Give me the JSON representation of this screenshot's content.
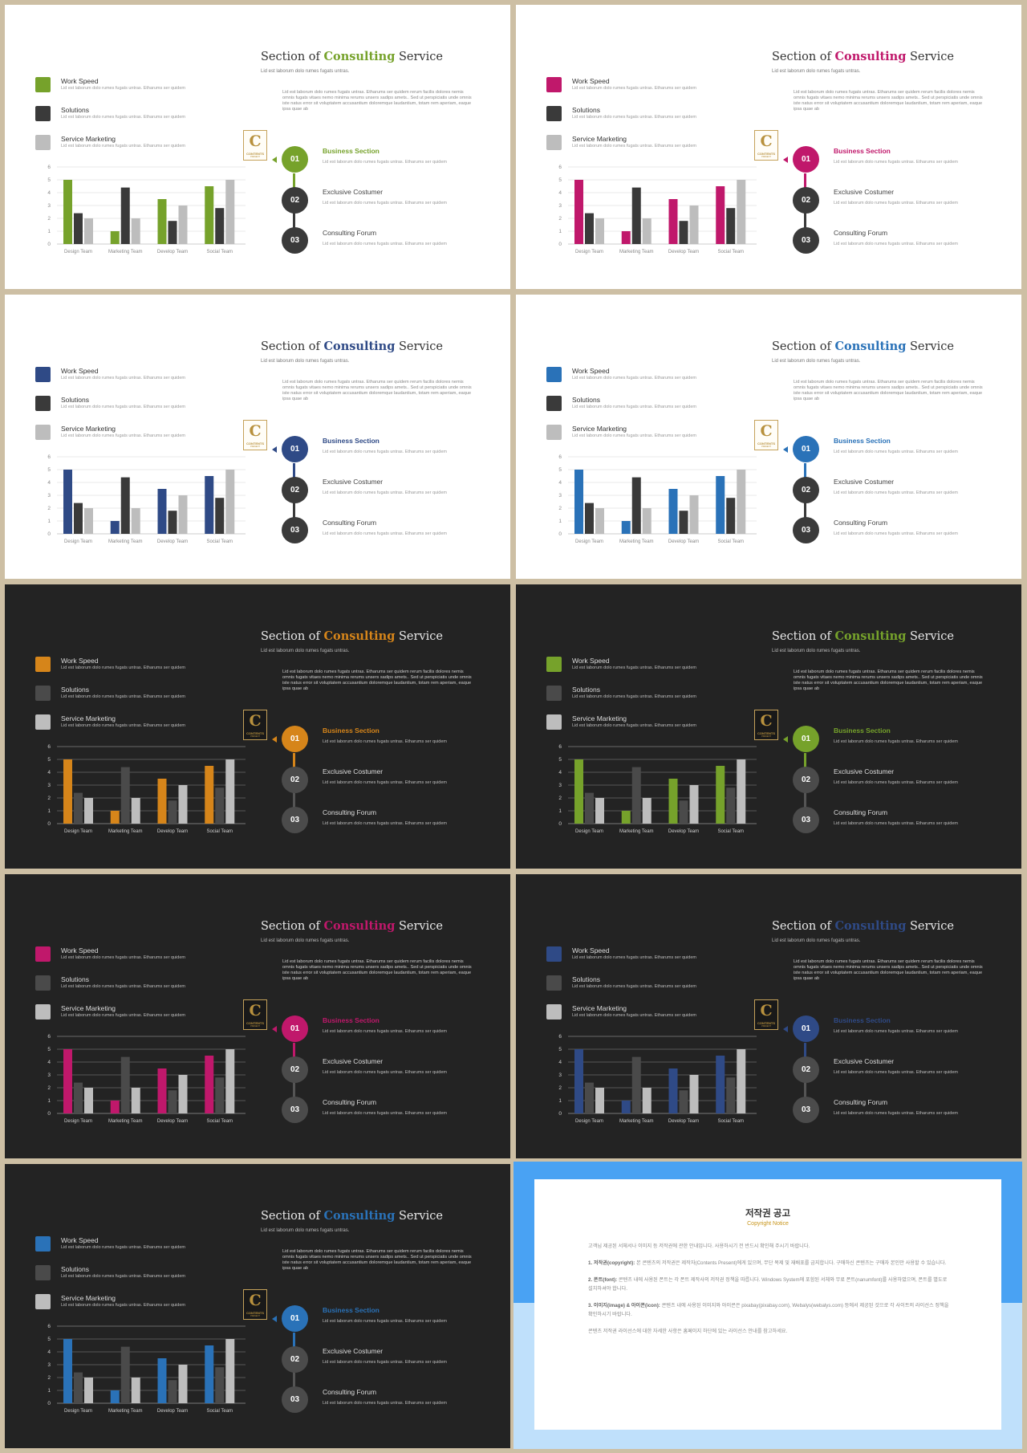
{
  "common": {
    "title_prefix": "Section of ",
    "title_accent": "Consulting",
    "title_suffix": " Service",
    "subtitle": "Lid est laborum dolo rumes fugats untras.",
    "paragraph": "Lid est laborum dolo rumes fugats untras. Etharums ser quidem rerum facilis dolores nemis omnis fugats vitaes nemo minima rerums unsers sadips amets.. Sed ut perspiciatis unde omnis iste natus error sit voluptatem accusantium doloremque laudantium, totam rem aperiam, eaque ipsa quae ab",
    "legend": [
      {
        "label": "Work Speed",
        "desc": "Lid est laborum dolo rumes fugats untras. Etharums ser quidem"
      },
      {
        "label": "Solutions",
        "desc": "Lid est laborum dolo rumes fugats untras. Etharums ser quidem"
      },
      {
        "label": "Service Marketing",
        "desc": "Lid est laborum dolo rumes fugats untras. Etharums ser quidem"
      }
    ],
    "logo": {
      "letter": "C",
      "line1": "CONTENTS",
      "line2": "PRESENT"
    },
    "steps": [
      {
        "num": "01",
        "title": "Business  Section",
        "desc": "Lid est laborum dolo rumes fugats untras. Etharums ser quidem"
      },
      {
        "num": "02",
        "title": "Exclusive Costumer",
        "desc": "Lid est laborum dolo rumes fugats untras. Etharums ser quidem"
      },
      {
        "num": "03",
        "title": "Consulting  Forum",
        "desc": "Lid est laborum dolo rumes fugats untras. Etharums ser quidem"
      }
    ]
  },
  "chart_data": {
    "type": "bar",
    "categories": [
      "Design Team",
      "Marketing Team",
      "Develop Team",
      "Social Team"
    ],
    "series": [
      {
        "name": "Work Speed",
        "values": [
          5,
          1,
          3.5,
          4.5
        ]
      },
      {
        "name": "Solutions",
        "values": [
          2.4,
          4.4,
          1.8,
          2.8
        ]
      },
      {
        "name": "Service Marketing",
        "values": [
          2,
          2,
          3,
          5
        ]
      }
    ],
    "ylim": [
      0,
      6
    ],
    "yticks": [
      0,
      1,
      2,
      3,
      4,
      5,
      6
    ],
    "grid": true
  },
  "slides": [
    {
      "theme": "light",
      "accent": "#76a22b"
    },
    {
      "theme": "light",
      "accent": "#c0186b"
    },
    {
      "theme": "light",
      "accent": "#2f4a86"
    },
    {
      "theme": "light",
      "accent": "#2a72b8"
    },
    {
      "theme": "dark",
      "accent": "#d6851a"
    },
    {
      "theme": "dark",
      "accent": "#76a22b"
    },
    {
      "theme": "dark",
      "accent": "#c0186b"
    },
    {
      "theme": "dark",
      "accent": "#2f4a86"
    },
    {
      "theme": "dark",
      "accent": "#2a72b8"
    }
  ],
  "notice": {
    "title": "저작권 공고",
    "subtitle": "Copyright Notice",
    "intro": "고객님 제공된 서체서나 이미지 등 저작권에 관한 안내입니다. 사용하시기 전 반드시 확인해 주시기 바랍니다.",
    "items": [
      {
        "head": "1. 저작권(copyright):",
        "text": " 본 콘텐츠의 저작권은 제작자(Contents Present)에게 있으며, 무단 복제 및 재배포를 금지합니다. 구매하신 콘텐츠는 구매자 본인만 사용할 수 있습니다."
      },
      {
        "head": "2. 폰트(font):",
        "text": " 콘텐츠 내에 사용된 폰트는 각 폰트 제작사의 저작권 정책을 따릅니다. Windows System에 포함된 서체와 무료 폰트(nanumfont)를 사용하였으며, 폰트를 별도로 설치하셔야 합니다."
      },
      {
        "head": "3. 이미지(image) & 아이콘(icon):",
        "text": " 콘텐츠 내에 사용된 이미지와 아이콘은 pixabay(pixabay.com), Webalys(webalys.com) 등에서 제공된 것으로 각 사이트의 라이선스 정책을 확인하시기 바랍니다."
      }
    ],
    "outro": "콘텐츠 저작권 라이선스에 대한 자세한 사항은 홈페이지 하단에 있는 라이선스 안내를 참고하세요."
  }
}
